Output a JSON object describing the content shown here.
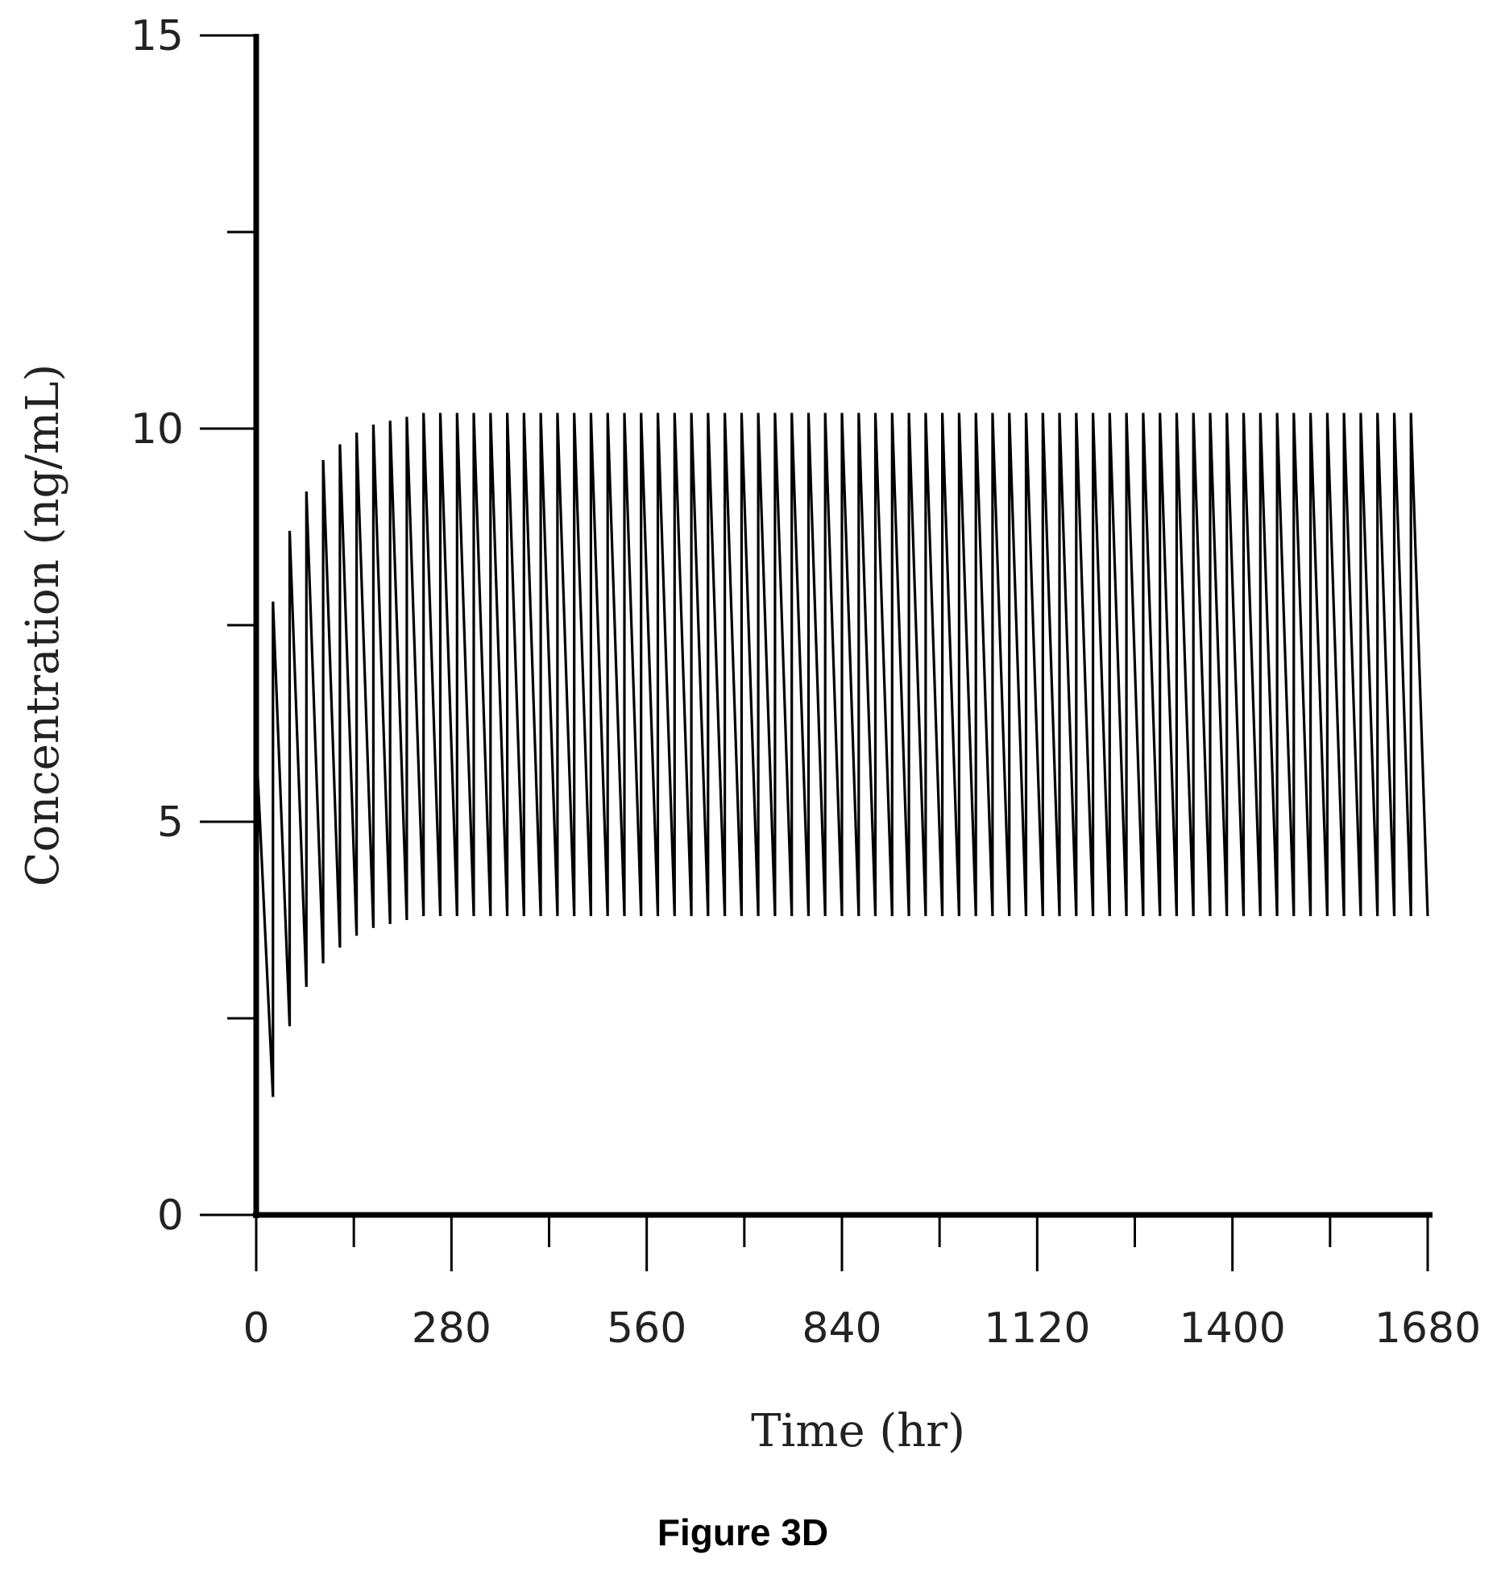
{
  "chart_data": {
    "type": "line",
    "title": "",
    "caption": "Figure 3D",
    "xlabel": "Time (hr)",
    "ylabel": "Concentration (ng/mL)",
    "xlim": [
      0,
      1680
    ],
    "ylim": [
      0,
      15
    ],
    "x_ticks": [
      0,
      280,
      560,
      840,
      1120,
      1400,
      1680
    ],
    "x_tick_labels": [
      "0",
      "280",
      "560",
      "840",
      "1120",
      "1400",
      "1680"
    ],
    "y_ticks": [
      0,
      5,
      10,
      15
    ],
    "y_tick_labels": [
      "0",
      "5",
      "10",
      "15"
    ],
    "x_minor_ticks": [
      140,
      420,
      700,
      980,
      1260,
      1540
    ],
    "y_minor_ticks": [
      2.5,
      7.5,
      12.5
    ],
    "grid": false,
    "legend": "none",
    "series": [
      {
        "name": "",
        "color": "#000000",
        "dosing_interval_hr": 24,
        "peaks": [
          {
            "t": 0,
            "c": 6.0
          },
          {
            "t": 24,
            "c": 7.8
          },
          {
            "t": 48,
            "c": 8.7
          },
          {
            "t": 72,
            "c": 9.2
          },
          {
            "t": 96,
            "c": 9.6
          },
          {
            "t": 120,
            "c": 9.8
          },
          {
            "t": 144,
            "c": 9.95
          },
          {
            "t": 168,
            "c": 10.05
          },
          {
            "t": 192,
            "c": 10.1
          },
          {
            "t": 216,
            "c": 10.15
          },
          {
            "t": 240,
            "c": 10.2
          },
          {
            "t": 1656,
            "c": 10.2
          }
        ],
        "troughs": [
          {
            "t": 12,
            "c": 1.9
          },
          {
            "t": 24,
            "c": 1.5
          },
          {
            "t": 48,
            "c": 2.4
          },
          {
            "t": 72,
            "c": 2.9
          },
          {
            "t": 96,
            "c": 3.2
          },
          {
            "t": 120,
            "c": 3.4
          },
          {
            "t": 144,
            "c": 3.55
          },
          {
            "t": 168,
            "c": 3.65
          },
          {
            "t": 192,
            "c": 3.7
          },
          {
            "t": 216,
            "c": 3.75
          },
          {
            "t": 240,
            "c": 3.8
          },
          {
            "t": 1680,
            "c": 3.8
          }
        ]
      }
    ]
  }
}
